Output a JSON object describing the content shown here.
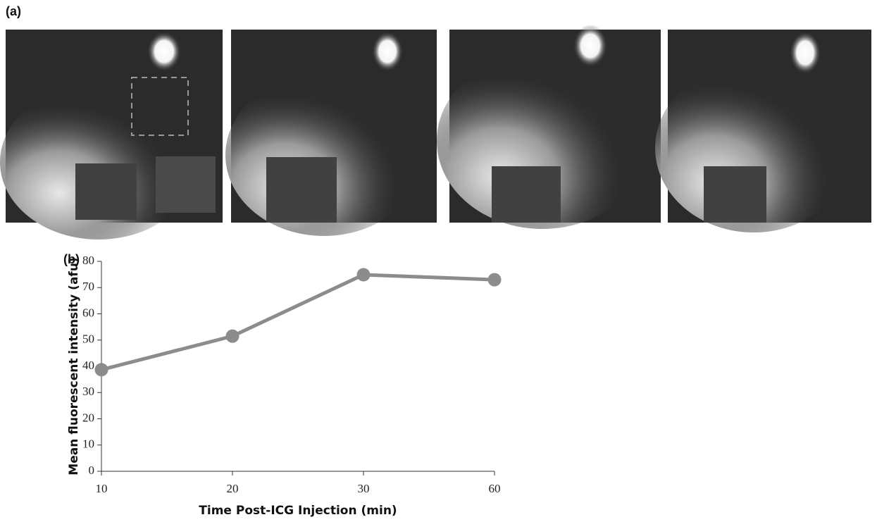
{
  "panel_labels": [
    "(a)",
    "(b)"
  ],
  "chart_data": {
    "type": "line",
    "x_label": "Time Post-ICG Injection (min)",
    "y_label": "Mean fluorescent intensity (afu)",
    "categories": [
      "10",
      "20",
      "30",
      "60"
    ],
    "values": [
      38.7,
      51.5,
      74.9,
      73
    ],
    "color": "#8c8c8c",
    "ylim": [
      0,
      80
    ],
    "yticks": [
      0,
      10,
      20,
      30,
      40,
      50,
      60,
      70,
      80
    ]
  }
}
